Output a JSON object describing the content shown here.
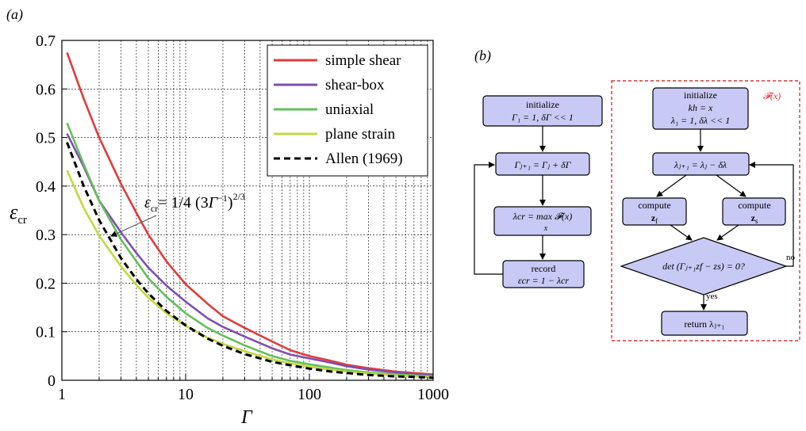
{
  "panel_a": {
    "label": "(a)",
    "formula": {
      "lhs": "ε",
      "lhs_sub": "cr",
      "mid": "= 1/4 (3",
      "gamma": "Γ",
      "inv": "−1",
      "rpar": ")",
      "pow": "2/3"
    }
  },
  "panel_b": {
    "label": "(b)",
    "func_label": "𝓕(x)",
    "left": {
      "init": [
        "initialize",
        "Γ₁ = 1, δΓ << 1"
      ],
      "update": "Γⱼ₊₁ = Γⱼ + δΓ",
      "lambda": [
        "λcr = max 𝓕(x)",
        "x"
      ],
      "record": [
        "record",
        "εcr = 1 − λcr"
      ]
    },
    "right": {
      "init": [
        "initialize",
        "kh = x",
        "λ₁ = 1, δλ << 1"
      ],
      "update": "λⱼ₊₁ = λⱼ − δλ",
      "compute_f": [
        "compute",
        "z",
        "f"
      ],
      "compute_s": [
        "compute",
        "z",
        "s"
      ],
      "decision": "det (Γⱼ₊₁zf − zs) = 0?",
      "yes": "yes",
      "no": "no",
      "return": "return λⱼ₊₁"
    }
  },
  "chart_data": {
    "type": "line",
    "title": "",
    "xlabel": "Γ",
    "ylabel": "ε",
    "ylabel_sub": "cr",
    "xscale": "log",
    "xlim": [
      1,
      1000
    ],
    "ylim": [
      0,
      0.7
    ],
    "xticks": [
      1,
      10,
      100,
      1000
    ],
    "xtick_labels": [
      "1",
      "10",
      "100",
      "1000"
    ],
    "yticks": [
      0,
      0.1,
      0.2,
      0.3,
      0.4,
      0.5,
      0.6,
      0.7
    ],
    "ytick_labels": [
      "0",
      "0.1",
      "0.2",
      "0.3",
      "0.4",
      "0.5",
      "0.6",
      "0.7"
    ],
    "grid": true,
    "legend_position": "top-right",
    "series": [
      {
        "name": "simple shear",
        "color": "#e23b3b",
        "dash": "solid",
        "x": [
          1.1,
          1.5,
          2,
          3,
          4,
          5,
          7,
          10,
          15,
          20,
          30,
          50,
          70,
          100,
          150,
          200,
          300,
          500,
          700,
          1000
        ],
        "y": [
          0.675,
          0.58,
          0.5,
          0.405,
          0.345,
          0.3,
          0.245,
          0.198,
          0.158,
          0.132,
          0.108,
          0.08,
          0.062,
          0.05,
          0.04,
          0.032,
          0.025,
          0.018,
          0.015,
          0.012
        ]
      },
      {
        "name": "shear-box",
        "color": "#7f4fb0",
        "dash": "solid",
        "x": [
          1.1,
          1.5,
          2,
          3,
          4,
          5,
          7,
          10,
          15,
          20,
          30,
          50,
          70,
          100,
          150,
          200,
          300,
          500,
          700,
          1000
        ],
        "y": [
          0.508,
          0.44,
          0.37,
          0.305,
          0.262,
          0.232,
          0.195,
          0.162,
          0.128,
          0.11,
          0.09,
          0.066,
          0.053,
          0.045,
          0.036,
          0.029,
          0.022,
          0.016,
          0.013,
          0.01
        ]
      },
      {
        "name": "uniaxial",
        "color": "#63bf5b",
        "dash": "solid",
        "x": [
          1.1,
          1.5,
          2,
          3,
          4,
          5,
          7,
          10,
          15,
          20,
          30,
          50,
          70,
          100,
          150,
          200,
          300,
          500,
          700,
          1000
        ],
        "y": [
          0.53,
          0.445,
          0.37,
          0.29,
          0.245,
          0.21,
          0.172,
          0.138,
          0.108,
          0.092,
          0.072,
          0.05,
          0.04,
          0.033,
          0.026,
          0.021,
          0.016,
          0.012,
          0.01,
          0.008
        ]
      },
      {
        "name": "plane strain",
        "color": "#c4d93d",
        "dash": "solid",
        "x": [
          1.1,
          1.5,
          2,
          3,
          4,
          5,
          7,
          10,
          15,
          20,
          30,
          50,
          70,
          100,
          150,
          200,
          300,
          500,
          700,
          1000
        ],
        "y": [
          0.432,
          0.355,
          0.298,
          0.235,
          0.196,
          0.17,
          0.138,
          0.112,
          0.088,
          0.075,
          0.06,
          0.043,
          0.035,
          0.028,
          0.022,
          0.018,
          0.014,
          0.01,
          0.008,
          0.006
        ]
      },
      {
        "name": "Allen (1969)",
        "color": "#000000",
        "dash": "dashed",
        "x": [
          1.1,
          1.5,
          2,
          3,
          4,
          5,
          7,
          10,
          15,
          20,
          30,
          50,
          70,
          100,
          150,
          200,
          300,
          500,
          700,
          1000
        ],
        "y": [
          0.49,
          0.4,
          0.33,
          0.252,
          0.208,
          0.179,
          0.143,
          0.113,
          0.086,
          0.071,
          0.054,
          0.038,
          0.031,
          0.024,
          0.018,
          0.015,
          0.011,
          0.008,
          0.007,
          0.005
        ]
      }
    ]
  }
}
